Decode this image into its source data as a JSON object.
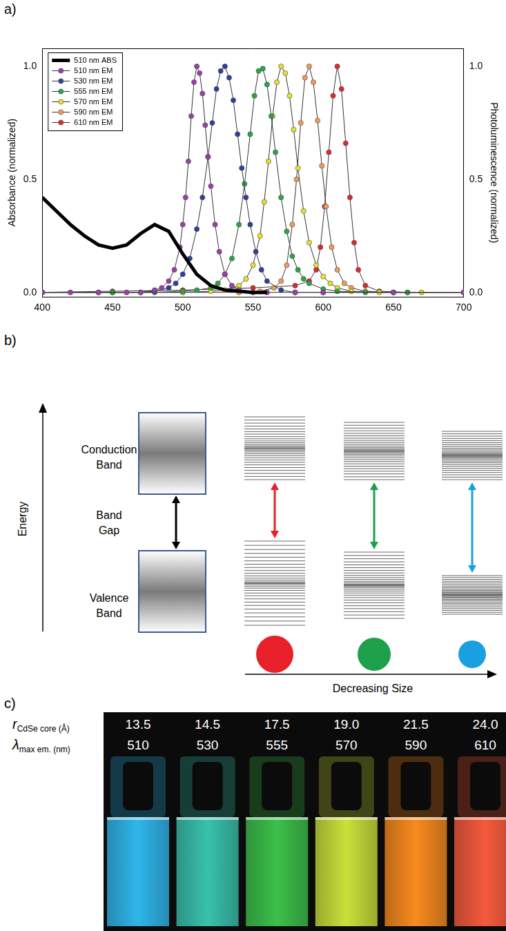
{
  "chart_data": {
    "type": "line",
    "y_label": "Absorbance (normalized)",
    "y2_label": "Photoluminescence (normalized)",
    "xlim": [
      400,
      700
    ],
    "xticks": [
      400,
      450,
      500,
      550,
      600,
      650,
      700
    ],
    "ylim": [
      -0.02,
      1.08
    ],
    "yticks": [
      {
        "value": 0,
        "label": "0.0"
      },
      {
        "value": 0.5,
        "label": "0.5"
      },
      {
        "value": 1,
        "label": "1.0"
      }
    ],
    "y2lim": [
      -0.02,
      1.08
    ],
    "y2ticks": [
      {
        "value": 0,
        "label": "0.0"
      },
      {
        "value": 0.5,
        "label": "0.5"
      },
      {
        "value": 1,
        "label": "1.0"
      }
    ],
    "grid": false,
    "legend": "upper left",
    "series": [
      {
        "name": "510 nm ABS",
        "color": "#000000",
        "marker": "none",
        "line_style": "solid",
        "x": [
          400,
          410,
          420,
          430,
          440,
          450,
          460,
          470,
          480,
          490,
          500,
          510,
          520,
          530,
          540,
          550,
          560
        ],
        "values": [
          0.42,
          0.36,
          0.3,
          0.25,
          0.21,
          0.195,
          0.21,
          0.26,
          0.3,
          0.27,
          0.17,
          0.08,
          0.03,
          0.01,
          0.005,
          0,
          0
        ]
      },
      {
        "name": "510 nm EM",
        "color": "#9b3fa6",
        "marker": "circle",
        "line_style": "solid",
        "axis": "y2",
        "x": [
          400,
          420,
          440,
          460,
          470,
          480,
          485,
          490,
          494,
          498,
          500,
          502,
          504,
          506,
          508,
          510,
          512,
          514,
          516,
          518,
          520,
          523,
          526,
          530,
          535,
          540,
          550,
          560,
          580,
          600,
          650,
          700
        ],
        "values": [
          0,
          0,
          0,
          0,
          0,
          0.01,
          0.02,
          0.05,
          0.1,
          0.2,
          0.3,
          0.42,
          0.58,
          0.78,
          0.93,
          1.0,
          0.97,
          0.88,
          0.74,
          0.6,
          0.47,
          0.3,
          0.18,
          0.08,
          0.03,
          0.01,
          0,
          0,
          0,
          0,
          0,
          0
        ]
      },
      {
        "name": "530 nm EM",
        "color": "#2e3f9e",
        "marker": "circle",
        "line_style": "solid",
        "axis": "y2",
        "x": [
          400,
          440,
          470,
          480,
          490,
          495,
          500,
          505,
          510,
          514,
          518,
          521,
          524,
          527,
          530,
          533,
          536,
          539,
          542,
          545,
          548,
          552,
          556,
          560,
          570,
          580,
          600,
          650,
          700
        ],
        "values": [
          0,
          0,
          0,
          0.005,
          0.02,
          0.04,
          0.08,
          0.15,
          0.28,
          0.42,
          0.6,
          0.75,
          0.9,
          0.98,
          1.0,
          0.95,
          0.85,
          0.7,
          0.55,
          0.42,
          0.3,
          0.18,
          0.1,
          0.05,
          0.01,
          0,
          0,
          0,
          0
        ]
      },
      {
        "name": "555 nm EM",
        "color": "#27a844",
        "marker": "circle",
        "line_style": "solid",
        "axis": "y2",
        "x": [
          400,
          450,
          480,
          500,
          510,
          520,
          525,
          530,
          535,
          540,
          544,
          548,
          551,
          554,
          557,
          560,
          563,
          566,
          570,
          574,
          578,
          582,
          586,
          590,
          600,
          610,
          630,
          660,
          700
        ],
        "values": [
          0,
          0,
          0,
          0.005,
          0.01,
          0.02,
          0.04,
          0.08,
          0.15,
          0.3,
          0.48,
          0.7,
          0.87,
          0.98,
          0.99,
          0.92,
          0.78,
          0.62,
          0.42,
          0.27,
          0.16,
          0.1,
          0.06,
          0.04,
          0.015,
          0.005,
          0,
          0,
          0
        ]
      },
      {
        "name": "570 nm EM",
        "color": "#e8e02a",
        "marker": "circle",
        "line_style": "solid",
        "axis": "y2",
        "x": [
          400,
          450,
          500,
          520,
          530,
          540,
          545,
          550,
          555,
          558,
          561,
          564,
          567,
          570,
          573,
          576,
          579,
          582,
          586,
          590,
          595,
          600,
          605,
          610,
          620,
          640,
          670,
          700
        ],
        "values": [
          0,
          0,
          0,
          0.005,
          0.01,
          0.03,
          0.06,
          0.12,
          0.25,
          0.4,
          0.58,
          0.78,
          0.93,
          1.0,
          0.97,
          0.87,
          0.72,
          0.55,
          0.36,
          0.22,
          0.12,
          0.07,
          0.04,
          0.02,
          0.005,
          0,
          0,
          0
        ]
      },
      {
        "name": "590 nm EM",
        "color": "#f29a5c",
        "marker": "circle",
        "line_style": "solid",
        "axis": "y2",
        "x": [
          400,
          450,
          500,
          540,
          555,
          565,
          570,
          574,
          578,
          581,
          584,
          587,
          590,
          593,
          596,
          599,
          602,
          606,
          610,
          615,
          620,
          630,
          650,
          700
        ],
        "values": [
          0,
          0,
          0,
          0,
          0.005,
          0.02,
          0.05,
          0.12,
          0.3,
          0.5,
          0.75,
          0.95,
          1.0,
          0.93,
          0.76,
          0.56,
          0.38,
          0.2,
          0.1,
          0.04,
          0.02,
          0.005,
          0,
          0
        ]
      },
      {
        "name": "610 nm EM",
        "color": "#e0282e",
        "marker": "circle",
        "line_style": "solid",
        "axis": "y2",
        "x": [
          400,
          450,
          500,
          550,
          580,
          590,
          595,
          598,
          601,
          604,
          607,
          610,
          613,
          616,
          619,
          622,
          625,
          630,
          640,
          660,
          700
        ],
        "values": [
          0,
          0.005,
          0.01,
          0.02,
          0.03,
          0.05,
          0.1,
          0.2,
          0.38,
          0.62,
          0.87,
          1.0,
          0.9,
          0.66,
          0.42,
          0.22,
          0.1,
          0.03,
          0.005,
          0,
          0
        ]
      }
    ]
  },
  "panel_labels": [
    "a)",
    "b)",
    "c)"
  ],
  "diagram": {
    "axis_label": "Energy",
    "conduction": "Conduction Band",
    "gap": "Band Gap",
    "valence": "Valence Band",
    "size_arrow": "Decreasing Size",
    "colors": [
      "#e8202a",
      "#1ea04a",
      "#1aa0e0"
    ]
  },
  "photo": {
    "rows": [
      {
        "symbol": "r",
        "subscript": "CdSe core (Å)",
        "cells": [
          "13.5",
          "14.5",
          "17.5",
          "19.0",
          "21.5",
          "24.0"
        ]
      },
      {
        "symbol": "λ",
        "subscript": "max em. (nm)",
        "cells": [
          "510",
          "530",
          "555",
          "570",
          "590",
          "610"
        ]
      }
    ],
    "colors": [
      "#2fb6ec",
      "#38c2ad",
      "#3cc04a",
      "#c9e03a",
      "#f88a1e",
      "#f45a3c"
    ]
  }
}
